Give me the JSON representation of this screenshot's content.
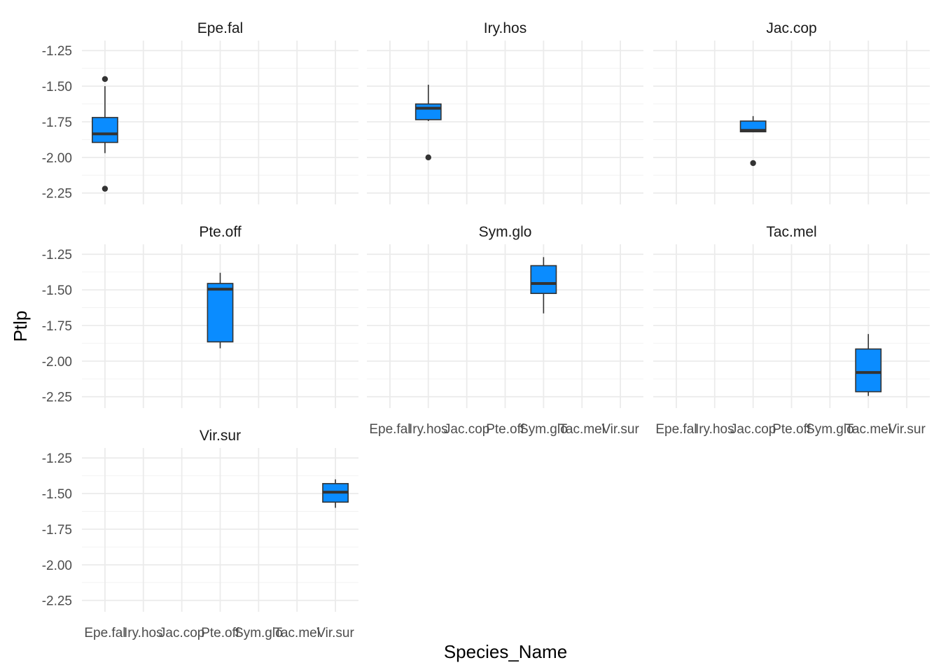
{
  "chart_data": {
    "type": "boxplot",
    "layout": "facet_wrap, 3 columns, 3 rows",
    "xlabel": "Species_Name",
    "ylabel": "Ptlp",
    "categories": [
      "Epe.fal",
      "Iry.hos",
      "Jac.cop",
      "Pte.off",
      "Sym.glo",
      "Tac.mel",
      "Vir.sur"
    ],
    "yticks": [
      "-1.25",
      "-1.50",
      "-1.75",
      "-2.00",
      "-2.25"
    ],
    "ytick_values": [
      -1.25,
      -1.5,
      -1.75,
      -2.0,
      -2.25
    ],
    "ylim": [
      -2.33,
      -1.18
    ],
    "grid": true,
    "box_color": "#0A8CFF",
    "outline_color": "#333333",
    "panels": [
      {
        "title": "Epe.fal",
        "category": "Epe.fal",
        "q1": -1.895,
        "median": -1.835,
        "q3": -1.72,
        "whisker_low": -1.97,
        "whisker_high": -1.5,
        "outliers": [
          -1.45,
          -2.22
        ]
      },
      {
        "title": "Iry.hos",
        "category": "Iry.hos",
        "q1": -1.735,
        "median": -1.655,
        "q3": -1.625,
        "whisker_low": -1.745,
        "whisker_high": -1.49,
        "outliers": [
          -2.0
        ]
      },
      {
        "title": "Jac.cop",
        "category": "Jac.cop",
        "q1": -1.82,
        "median": -1.81,
        "q3": -1.745,
        "whisker_low": -1.82,
        "whisker_high": -1.71,
        "outliers": [
          -2.04
        ]
      },
      {
        "title": "Pte.off",
        "category": "Pte.off",
        "q1": -1.865,
        "median": -1.495,
        "q3": -1.455,
        "whisker_low": -1.91,
        "whisker_high": -1.38,
        "outliers": []
      },
      {
        "title": "Sym.glo",
        "category": "Sym.glo",
        "q1": -1.525,
        "median": -1.455,
        "q3": -1.33,
        "whisker_low": -1.665,
        "whisker_high": -1.27,
        "outliers": []
      },
      {
        "title": "Tac.mel",
        "category": "Tac.mel",
        "q1": -2.215,
        "median": -2.08,
        "q3": -1.915,
        "whisker_low": -2.245,
        "whisker_high": -1.81,
        "outliers": []
      },
      {
        "title": "Vir.sur",
        "category": "Vir.sur",
        "q1": -1.56,
        "median": -1.49,
        "q3": -1.43,
        "whisker_low": -1.6,
        "whisker_high": -1.4,
        "outliers": []
      }
    ]
  }
}
